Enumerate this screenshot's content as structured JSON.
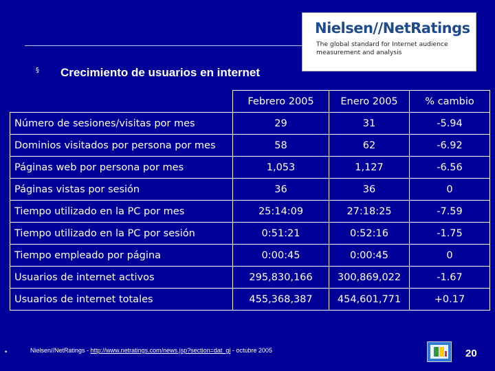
{
  "logo": {
    "name": "Nielsen//NetRatings",
    "tagline_line1": "The global standard for Internet audience",
    "tagline_line2": "measurement and analysis"
  },
  "heading": {
    "bullet": "§",
    "title": "Crecimiento de usuarios en internet"
  },
  "table": {
    "columns": [
      "Febrero 2005",
      "Enero 2005",
      "% cambio"
    ],
    "rows": [
      {
        "label": "Número de sesiones/visitas por mes",
        "feb": "29",
        "ene": "31",
        "cambio": "-5.94"
      },
      {
        "label": "Dominios visitados por persona por mes",
        "feb": "58",
        "ene": "62",
        "cambio": "-6.92"
      },
      {
        "label": "Páginas web por persona por mes",
        "feb": "1,053",
        "ene": "1,127",
        "cambio": "-6.56"
      },
      {
        "label": "Páginas vistas por sesión",
        "feb": "36",
        "ene": "36",
        "cambio": "0"
      },
      {
        "label": "Tiempo utilizado en la PC por mes",
        "feb": "25:14:09",
        "ene": "27:18:25",
        "cambio": "-7.59"
      },
      {
        "label": "Tiempo utilizado en la PC por sesión",
        "feb": "0:51:21",
        "ene": "0:52:16",
        "cambio": "-1.75"
      },
      {
        "label": "Tiempo empleado por página",
        "feb": "0:00:45",
        "ene": "0:00:45",
        "cambio": "0"
      },
      {
        "label": "Usuarios de internet activos",
        "feb": "295,830,166",
        "ene": "300,869,022",
        "cambio": "-1.67"
      },
      {
        "label": "Usuarios de internet totales",
        "feb": "455,368,387",
        "ene": "454,601,771",
        "cambio": "+0.17"
      }
    ]
  },
  "footer": {
    "dot": "•",
    "source_prefix": "Nielsen//NetRatings - ",
    "source_link": "http://www.netratings.com/news.jsp?section=dat_gi",
    "source_suffix": " - octubre 2005",
    "page_number": "20"
  },
  "colors": {
    "background": "#000099",
    "text": "#ffffff",
    "logo_blue": "#1f4b8e"
  },
  "icons": {
    "nav": "presentation-nav-icon"
  }
}
